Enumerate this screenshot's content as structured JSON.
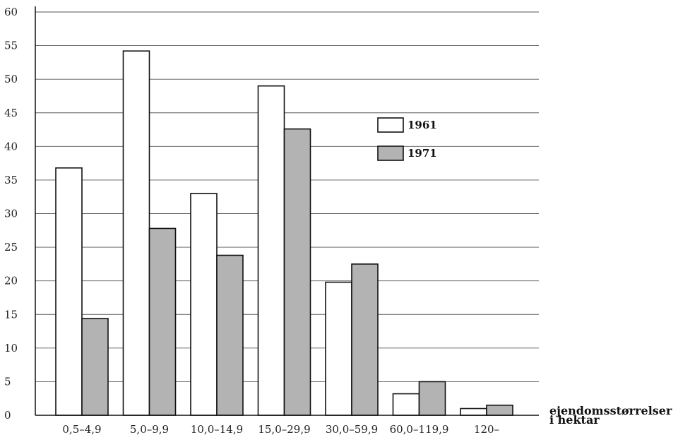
{
  "chart_data": {
    "type": "bar",
    "categories": [
      "0,5–4,9",
      "5,0–9,9",
      "10,0–14,9",
      "15,0–29,9",
      "30,0–59,9",
      "60,0–119,9",
      "120–"
    ],
    "series": [
      {
        "name": "1961",
        "values": [
          36.8,
          54.2,
          33.0,
          49.0,
          19.8,
          3.2,
          1.0
        ],
        "color": "#ffffff"
      },
      {
        "name": "1971",
        "values": [
          14.4,
          27.8,
          23.8,
          42.6,
          22.5,
          5.0,
          1.5
        ],
        "color": "#b3b3b3"
      }
    ],
    "ylim": [
      0,
      60
    ],
    "yticks": [
      "0",
      "5",
      "10",
      "15",
      "20",
      "25",
      "30",
      "35",
      "40",
      "45",
      "50",
      "55",
      "60"
    ],
    "xlabel_lines": [
      "ejendomsstørrelser",
      "i hektar"
    ],
    "grid": true,
    "legend_position": "center-right"
  }
}
